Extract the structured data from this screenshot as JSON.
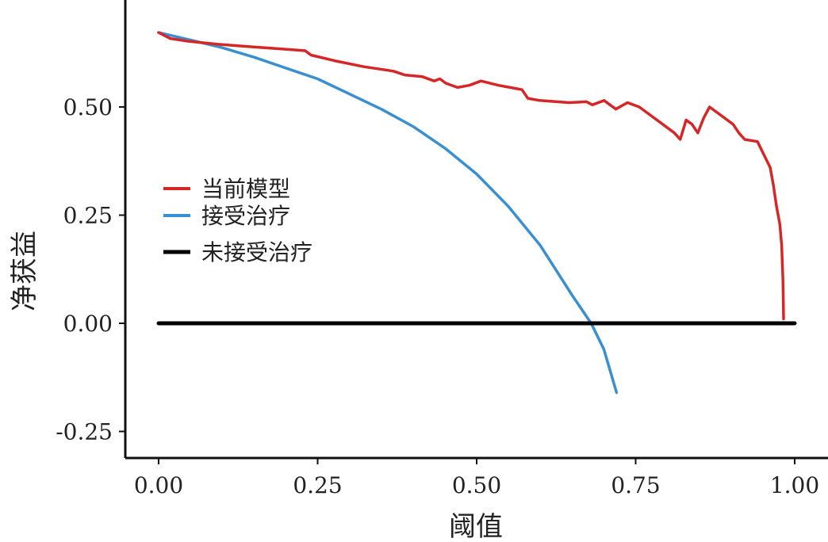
{
  "chart_data": {
    "type": "line",
    "xlabel": "阈值",
    "ylabel": "净获益",
    "xlim": [
      0,
      1
    ],
    "ylim": [
      -0.3,
      0.75
    ],
    "x_ticks": [
      0,
      0.25,
      0.5,
      0.75,
      1.0
    ],
    "x_tick_labels": [
      "0.00",
      "0.25",
      "0.50",
      "0.75",
      "1.00"
    ],
    "y_ticks": [
      -0.25,
      0,
      0.25,
      0.5
    ],
    "y_tick_labels": [
      "-0.25",
      "0.00",
      "0.25",
      "0.50"
    ],
    "grid": false,
    "legend_position": "left",
    "series": [
      {
        "name": "当前模型",
        "color": "#d62728",
        "points": [
          [
            0.0,
            0.672
          ],
          [
            0.02,
            0.658
          ],
          [
            0.05,
            0.652
          ],
          [
            0.1,
            0.645
          ],
          [
            0.15,
            0.64
          ],
          [
            0.2,
            0.635
          ],
          [
            0.25,
            0.63
          ],
          [
            0.26,
            0.62
          ],
          [
            0.3,
            0.607
          ],
          [
            0.35,
            0.593
          ],
          [
            0.4,
            0.583
          ],
          [
            0.42,
            0.574
          ],
          [
            0.45,
            0.57
          ],
          [
            0.47,
            0.56
          ],
          [
            0.48,
            0.565
          ],
          [
            0.49,
            0.555
          ],
          [
            0.51,
            0.545
          ],
          [
            0.53,
            0.55
          ],
          [
            0.55,
            0.56
          ],
          [
            0.58,
            0.55
          ],
          [
            0.6,
            0.545
          ],
          [
            0.62,
            0.54
          ],
          [
            0.63,
            0.52
          ],
          [
            0.65,
            0.515
          ],
          [
            0.7,
            0.51
          ],
          [
            0.73,
            0.512
          ],
          [
            0.74,
            0.505
          ],
          [
            0.76,
            0.515
          ],
          [
            0.78,
            0.495
          ],
          [
            0.8,
            0.51
          ],
          [
            0.82,
            0.5
          ],
          [
            0.84,
            0.48
          ],
          [
            0.86,
            0.46
          ],
          [
            0.88,
            0.44
          ],
          [
            0.89,
            0.425
          ],
          [
            0.9,
            0.47
          ],
          [
            0.91,
            0.46
          ],
          [
            0.92,
            0.44
          ],
          [
            0.93,
            0.475
          ],
          [
            0.94,
            0.5
          ],
          [
            0.96,
            0.48
          ],
          [
            0.97,
            0.47
          ],
          [
            0.98,
            0.46
          ],
          [
            0.99,
            0.44
          ],
          [
            1.0,
            0.425
          ],
          [
            1.02,
            0.42
          ],
          [
            1.03,
            0.39
          ],
          [
            1.04,
            0.36
          ],
          [
            1.045,
            0.32
          ],
          [
            1.05,
            0.27
          ],
          [
            1.055,
            0.23
          ],
          [
            1.058,
            0.18
          ],
          [
            1.06,
            0.1
          ],
          [
            1.061,
            0.01
          ]
        ]
      },
      {
        "name": "接受治疗",
        "color": "#3a8fd0",
        "points": [
          [
            0.0,
            0.672
          ],
          [
            0.05,
            0.655
          ],
          [
            0.1,
            0.637
          ],
          [
            0.15,
            0.615
          ],
          [
            0.2,
            0.59
          ],
          [
            0.25,
            0.565
          ],
          [
            0.3,
            0.53
          ],
          [
            0.35,
            0.495
          ],
          [
            0.4,
            0.455
          ],
          [
            0.45,
            0.405
          ],
          [
            0.5,
            0.345
          ],
          [
            0.55,
            0.27
          ],
          [
            0.6,
            0.18
          ],
          [
            0.65,
            0.065
          ],
          [
            0.68,
            0.0
          ],
          [
            0.7,
            -0.06
          ],
          [
            0.72,
            -0.16
          ]
        ]
      },
      {
        "name": "未接受治疗",
        "color": "#000000",
        "points": [
          [
            0.0,
            0.0
          ],
          [
            1.0,
            0.0
          ]
        ]
      }
    ]
  }
}
